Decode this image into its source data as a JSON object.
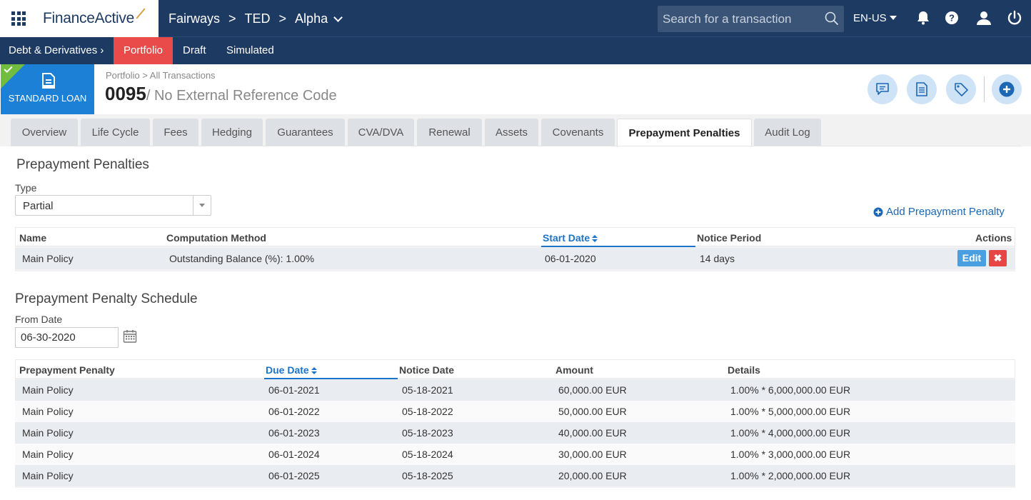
{
  "topbar": {
    "logo": "FinanceActive",
    "breadcrumb": [
      "Fairways",
      "TED",
      "Alpha"
    ],
    "search_placeholder": "Search for a transaction",
    "language": "EN-US",
    "icons": [
      "apps-grid-icon",
      "bell-icon",
      "help-icon",
      "user-icon",
      "power-icon"
    ]
  },
  "subnav": {
    "section": "Debt & Derivatives",
    "items": [
      "Portfolio",
      "Draft",
      "Simulated"
    ],
    "active": "Portfolio"
  },
  "header": {
    "badge_label": "STANDARD LOAN",
    "breadcrumb": "Portfolio > All Transactions",
    "number": "0095",
    "reference": "/ No External Reference Code",
    "colors": {
      "badge": "#1b80d6",
      "status_ok": "#72bd3f",
      "accent": "#e94b4b",
      "nav": "#1d3a63"
    }
  },
  "tabs": [
    "Overview",
    "Life Cycle",
    "Fees",
    "Hedging",
    "Guarantees",
    "CVA/DVA",
    "Renewal",
    "Assets",
    "Covenants",
    "Prepayment Penalties",
    "Audit Log"
  ],
  "active_tab": "Prepayment Penalties",
  "penalties": {
    "title": "Prepayment Penalties",
    "type_label": "Type",
    "type_value": "Partial",
    "add_label": "Add Prepayment Penalty",
    "columns": [
      "Name",
      "Computation Method",
      "Start Date",
      "Notice Period",
      "Actions"
    ],
    "rows": [
      {
        "name": "Main Policy",
        "method": "Outstanding Balance (%): 1.00%",
        "start": "06-01-2020",
        "notice": "14 days"
      }
    ],
    "edit_label": "Edit",
    "delete_label": "✖"
  },
  "schedule": {
    "title": "Prepayment Penalty Schedule",
    "from_label": "From Date",
    "from_value": "06-30-2020",
    "columns": [
      "Prepayment Penalty",
      "Due Date",
      "Notice Date",
      "Amount",
      "Details"
    ],
    "rows": [
      [
        "Main Policy",
        "06-01-2021",
        "05-18-2021",
        "60,000.00 EUR",
        "1.00% * 6,000,000.00 EUR"
      ],
      [
        "Main Policy",
        "06-01-2022",
        "05-18-2022",
        "50,000.00 EUR",
        "1.00% * 5,000,000.00 EUR"
      ],
      [
        "Main Policy",
        "06-01-2023",
        "05-18-2023",
        "40,000.00 EUR",
        "1.00% * 4,000,000.00 EUR"
      ],
      [
        "Main Policy",
        "06-01-2024",
        "05-18-2024",
        "30,000.00 EUR",
        "1.00% * 3,000,000.00 EUR"
      ],
      [
        "Main Policy",
        "06-01-2025",
        "05-18-2025",
        "20,000.00 EUR",
        "1.00% * 2,000,000.00 EUR"
      ]
    ]
  }
}
